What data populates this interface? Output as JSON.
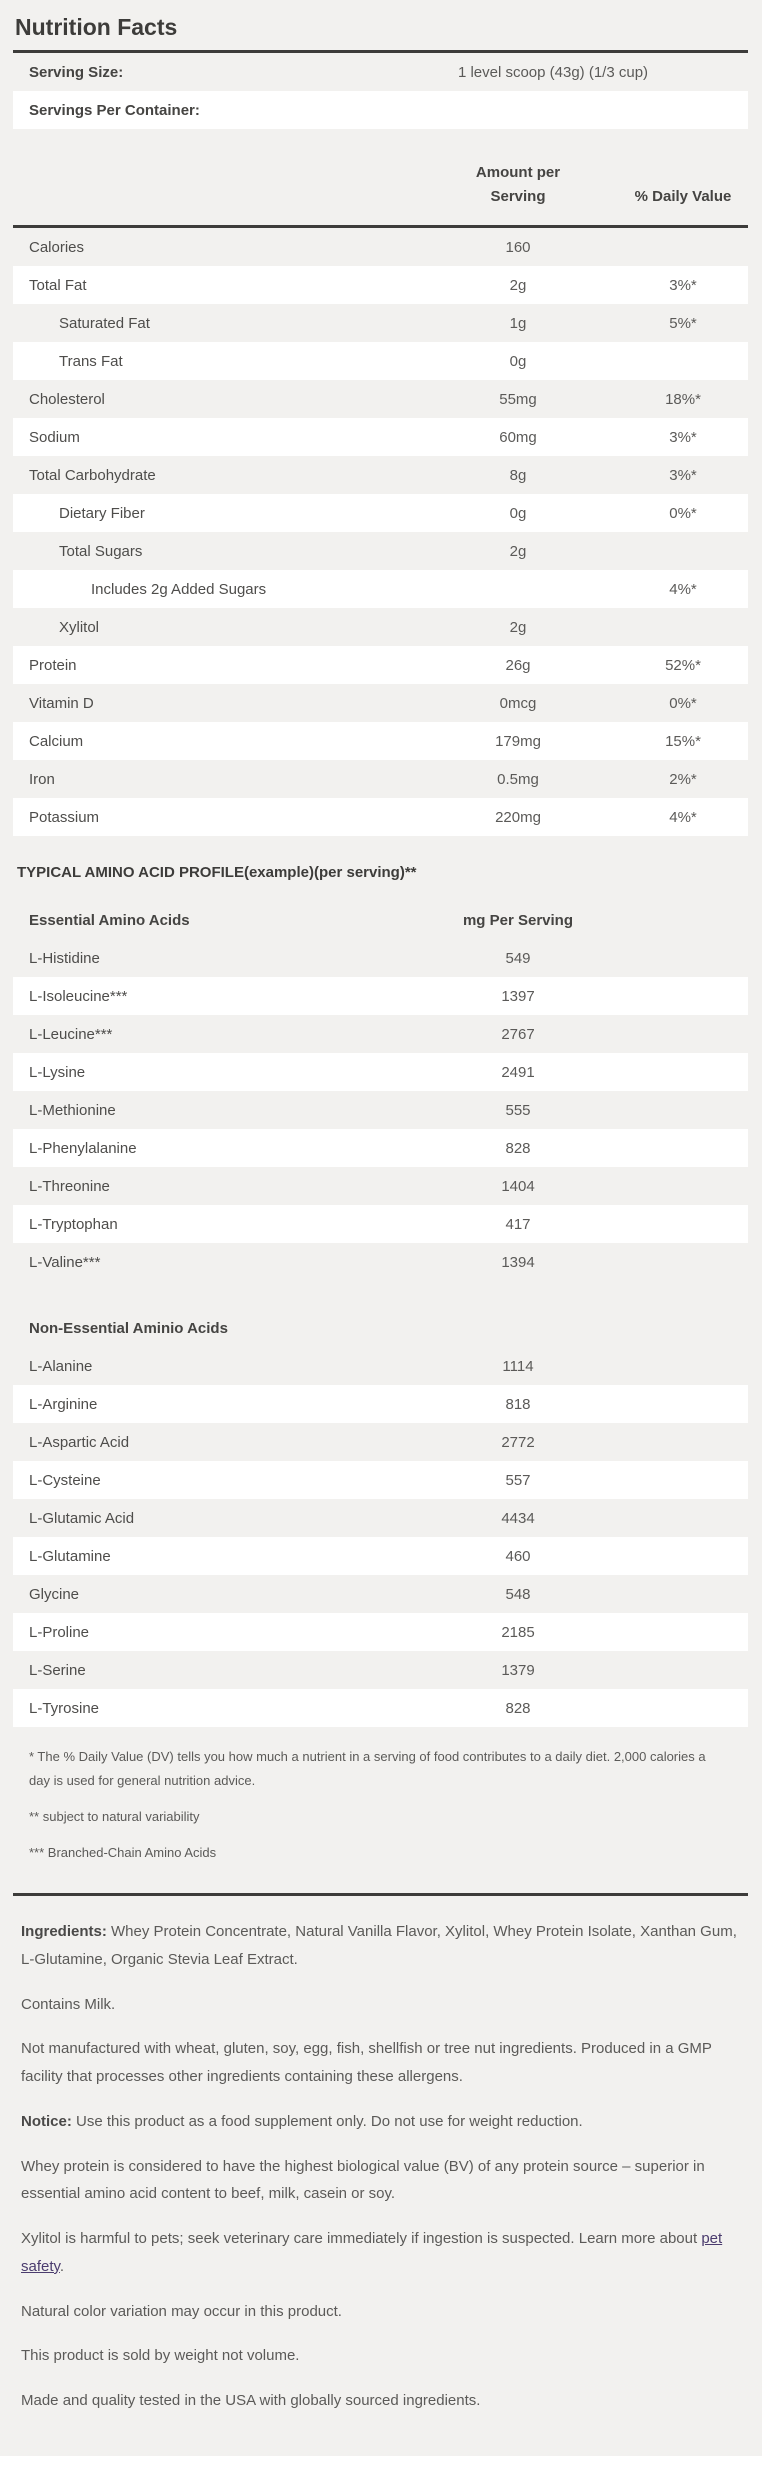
{
  "colors": {
    "panel_background": "#f2f1ef",
    "row_highlight": "#ffffff",
    "rule_dark": "#3d3c3a",
    "text_dark": "#3d3c3a",
    "text_body": "#5b5a58",
    "link_purple": "#4b3c6e"
  },
  "header": {
    "title": "Nutrition Facts"
  },
  "serving": {
    "rows": [
      {
        "label": "Serving Size:",
        "value": "1 level scoop (43g) (1/3 cup)"
      },
      {
        "label": "Servings Per Container:",
        "value": ""
      }
    ]
  },
  "facts_table": {
    "col_headers": {
      "amount": "Amount per\nServing",
      "dv": "% Daily Value"
    },
    "rows": [
      {
        "label": "Calories",
        "amount": "160",
        "dv": ""
      },
      {
        "label": "Total Fat",
        "amount": "2g",
        "dv": "3%*"
      },
      {
        "label": "Saturated Fat",
        "amount": "1g",
        "dv": "5%*"
      },
      {
        "label": "Trans Fat",
        "amount": "0g",
        "dv": ""
      },
      {
        "label": "Cholesterol",
        "amount": "55mg",
        "dv": "18%*"
      },
      {
        "label": "Sodium",
        "amount": "60mg",
        "dv": "3%*"
      },
      {
        "label": "Total Carbohydrate",
        "amount": "8g",
        "dv": "3%*"
      },
      {
        "label": "Dietary Fiber",
        "amount": "0g",
        "dv": "0%*"
      },
      {
        "label": "Total Sugars",
        "amount": "2g",
        "dv": ""
      },
      {
        "label": "Includes 2g Added Sugars",
        "amount": "",
        "dv": "4%*"
      },
      {
        "label": "Xylitol",
        "amount": "2g",
        "dv": ""
      },
      {
        "label": "Protein",
        "amount": "26g",
        "dv": "52%*"
      },
      {
        "label": "Vitamin D",
        "amount": "0mcg",
        "dv": "0%*"
      },
      {
        "label": "Calcium",
        "amount": "179mg",
        "dv": "15%*"
      },
      {
        "label": "Iron",
        "amount": "0.5mg",
        "dv": "2%*"
      },
      {
        "label": "Potassium",
        "amount": "220mg",
        "dv": "4%*"
      }
    ]
  },
  "amino_section": {
    "title": "TYPICAL AMINO ACID PROFILE(example)(per serving)**",
    "essential": {
      "header": {
        "label": "Essential Amino Acids",
        "value": "mg Per Serving"
      },
      "rows": [
        {
          "label": "L-Histidine",
          "value": "549"
        },
        {
          "label": "L-Isoleucine***",
          "value": "1397"
        },
        {
          "label": "L-Leucine***",
          "value": "2767"
        },
        {
          "label": "L-Lysine",
          "value": "2491"
        },
        {
          "label": "L-Methionine",
          "value": "555"
        },
        {
          "label": "L-Phenylalanine",
          "value": "828"
        },
        {
          "label": "L-Threonine",
          "value": "1404"
        },
        {
          "label": "L-Tryptophan",
          "value": "417"
        },
        {
          "label": "L-Valine***",
          "value": "1394"
        }
      ]
    },
    "non_essential": {
      "header": {
        "label": "Non-Essential Aminio Acids",
        "value": ""
      },
      "rows": [
        {
          "label": "L-Alanine",
          "value": "1114"
        },
        {
          "label": "L-Arginine",
          "value": "818"
        },
        {
          "label": "L-Aspartic Acid",
          "value": "2772"
        },
        {
          "label": "L-Cysteine",
          "value": "557"
        },
        {
          "label": "L-Glutamic Acid",
          "value": "4434"
        },
        {
          "label": "L-Glutamine",
          "value": "460"
        },
        {
          "label": "Glycine",
          "value": "548"
        },
        {
          "label": "L-Proline",
          "value": "2185"
        },
        {
          "label": "L-Serine",
          "value": "1379"
        },
        {
          "label": "L-Tyrosine",
          "value": "828"
        }
      ]
    }
  },
  "footnotes": {
    "dv_note": "* The % Daily Value (DV) tells you how much a nutrient in a serving of food contributes to a daily diet. 2,000 calories a day is used for general nutrition advice.",
    "variability_note": "** subject to natural variability",
    "bcaa_note": "*** Branched-Chain Amino Acids"
  },
  "bottom": {
    "ingredients_label": "Ingredients:",
    "ingredients_text": " Whey Protein Concentrate, Natural Vanilla Flavor, Xylitol, Whey Protein Isolate, Xanthan Gum, L-Glutamine, Organic Stevia Leaf Extract.",
    "contains": "Contains Milk.",
    "allergens": "Not manufactured with wheat, gluten, soy, egg, fish, shellfish or tree nut ingredients. Produced in a GMP facility that processes other ingredients containing these allergens.",
    "notice_label": "Notice:",
    "notice_text": " Use this product as a food supplement only. Do not use for weight reduction.",
    "whey_bv": "Whey protein is considered to have the highest biological value (BV) of any protein source – superior in essential amino acid content to beef, milk, casein or soy.",
    "xylitol_warning_prefix": "Xylitol is harmful to pets; seek veterinary care immediately if ingestion is suspected. Learn more about ",
    "pet_safety_link": "pet safety",
    "xylitol_warning_suffix": ".",
    "color_variation": "Natural color variation may occur in this product.",
    "sold_by_weight": "This product is sold by weight not volume.",
    "made_in": "Made and quality tested in the USA with globally sourced ingredients."
  }
}
